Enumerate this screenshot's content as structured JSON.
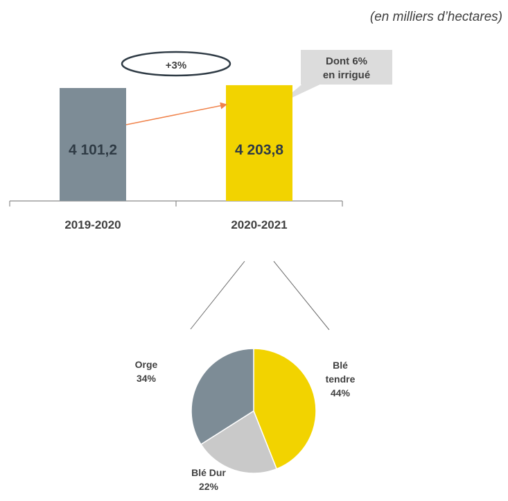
{
  "unit_note": "(en milliers d’hectares)",
  "colors": {
    "grey": "#7d8c96",
    "yellow": "#f2d300",
    "light_grey": "#c9c9c9",
    "arrow": "#f0824a",
    "axis": "#8a8a8a"
  },
  "growth_label": "+3%",
  "callout": {
    "line1": "Dont 6%",
    "line2": "en irrigué"
  },
  "chart_data": [
    {
      "type": "bar",
      "categories": [
        "2019-2020",
        "2020-2021"
      ],
      "values": [
        4101.2,
        4203.8
      ],
      "value_labels": [
        "4 101,2",
        "4 203,8"
      ],
      "colors": [
        "#7d8c96",
        "#f2d300"
      ]
    },
    {
      "type": "pie",
      "slices": [
        {
          "name_lines": [
            "Blé",
            "tendre"
          ],
          "pct_label": "44%",
          "value": 44,
          "color": "#f2d300"
        },
        {
          "name_lines": [
            "Blé Dur"
          ],
          "pct_label": "22%",
          "value": 22,
          "color": "#c9c9c9"
        },
        {
          "name_lines": [
            "Orge"
          ],
          "pct_label": "34%",
          "value": 34,
          "color": "#7d8c96"
        }
      ]
    }
  ]
}
